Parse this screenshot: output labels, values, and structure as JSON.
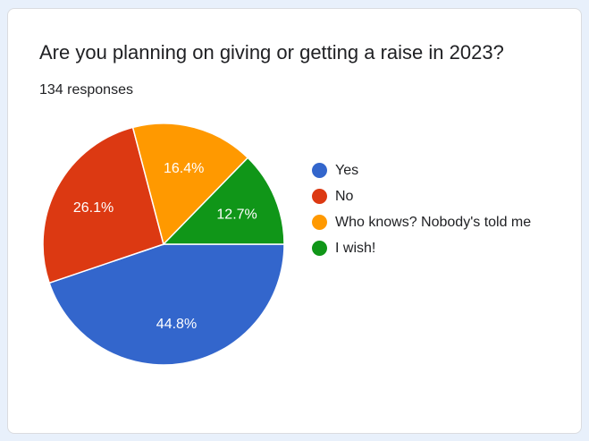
{
  "title": "Are you planning on giving or getting a raise in 2023?",
  "responses": "134 responses",
  "chart_data": {
    "type": "pie",
    "title": "Are you planning on giving or getting a raise in 2023?",
    "subtitle": "134 responses",
    "slices": [
      {
        "label": "Yes",
        "value": 44.8,
        "display": "44.8%",
        "color": "#3366cc"
      },
      {
        "label": "No",
        "value": 26.1,
        "display": "26.1%",
        "color": "#dc3912"
      },
      {
        "label": "Who knows? Nobody's told me",
        "value": 16.4,
        "display": "16.4%",
        "color": "#ff9900"
      },
      {
        "label": "I wish!",
        "value": 12.7,
        "display": "12.7%",
        "color": "#109618"
      }
    ],
    "legend_position": "right"
  }
}
